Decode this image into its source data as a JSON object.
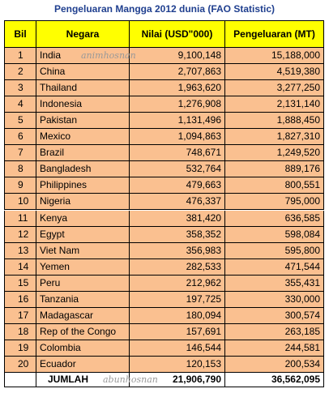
{
  "title": "Pengeluaran Mangga 2012 dunia (FAO Statistic)",
  "table": {
    "header": [
      "Bil",
      "Negara",
      "Nilai (USD\"000)",
      "Pengeluaran (MT)"
    ],
    "rows": [
      [
        "1",
        "India",
        "9,100,148",
        "15,188,000"
      ],
      [
        "2",
        "China",
        "2,707,863",
        "4,519,380"
      ],
      [
        "3",
        "Thailand",
        "1,963,620",
        "3,277,250"
      ],
      [
        "4",
        "Indonesia",
        "1,276,908",
        "2,131,140"
      ],
      [
        "5",
        "Pakistan",
        "1,131,496",
        "1,888,450"
      ],
      [
        "6",
        "Mexico",
        "1,094,863",
        "1,827,310"
      ],
      [
        "7",
        "Brazil",
        "748,671",
        "1,249,520"
      ],
      [
        "8",
        "Bangladesh",
        "532,764",
        "889,176"
      ],
      [
        "9",
        "Philippines",
        "479,663",
        "800,551"
      ],
      [
        "10",
        "Nigeria",
        "476,337",
        "795,000"
      ],
      [
        "11",
        "Kenya",
        "381,420",
        "636,585"
      ],
      [
        "12",
        "Egypt",
        "358,352",
        "598,084"
      ],
      [
        "13",
        "Viet Nam",
        "356,983",
        "595,800"
      ],
      [
        "14",
        "Yemen",
        "282,533",
        "471,544"
      ],
      [
        "15",
        "Peru",
        "212,962",
        "355,431"
      ],
      [
        "16",
        "Tanzania",
        "197,725",
        "330,000"
      ],
      [
        "17",
        "Madagascar",
        "180,094",
        "300,574"
      ],
      [
        "18",
        "Rep of the Congo",
        "157,691",
        "263,185"
      ],
      [
        "19",
        "Colombia",
        "146,544",
        "244,581"
      ],
      [
        "20",
        "Ecuador",
        "120,153",
        "200,534"
      ]
    ],
    "total": {
      "label": "JUMLAH",
      "values": [
        "21,906,790",
        "36,562,095"
      ]
    }
  },
  "watermarks": [
    "animhosnan",
    "abunhosnan"
  ]
}
